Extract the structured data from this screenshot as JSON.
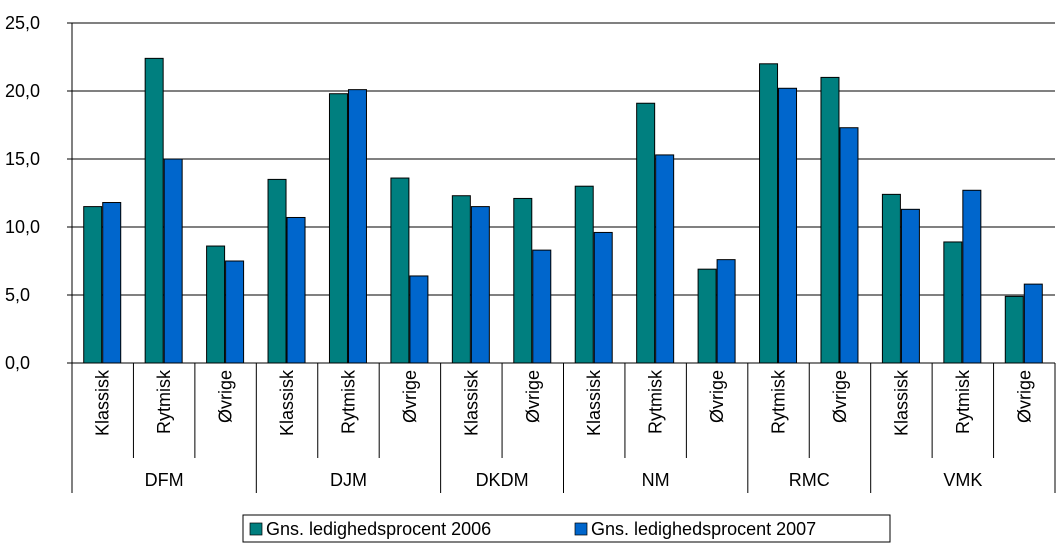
{
  "chart_data": {
    "type": "bar",
    "ylim": [
      0,
      25
    ],
    "y_ticks": [
      "0,0",
      "5,0",
      "10,0",
      "15,0",
      "20,0",
      "25,0"
    ],
    "y_tick_values": [
      0,
      5,
      10,
      15,
      20,
      25
    ],
    "grid": "horizontal",
    "legend_position": "bottom",
    "groups": [
      {
        "name": "DFM",
        "categories": [
          "Klassisk",
          "Rytmisk",
          "Øvrige"
        ]
      },
      {
        "name": "DJM",
        "categories": [
          "Klassisk",
          "Rytmisk",
          "Øvrige"
        ]
      },
      {
        "name": "DKDM",
        "categories": [
          "Klassisk",
          "Øvrige"
        ]
      },
      {
        "name": "NM",
        "categories": [
          "Klassisk",
          "Rytmisk",
          "Øvrige"
        ]
      },
      {
        "name": "RMC",
        "categories": [
          "Rytmisk",
          "Øvrige"
        ]
      },
      {
        "name": "VMK",
        "categories": [
          "Klassisk",
          "Rytmisk",
          "Øvrige"
        ]
      }
    ],
    "series": [
      {
        "name": "Gns. ledighedsprocent 2006",
        "color": "#007f7f",
        "values": [
          11.5,
          22.4,
          8.6,
          13.5,
          19.8,
          13.6,
          12.3,
          12.1,
          13.0,
          19.1,
          6.9,
          22.0,
          21.0,
          12.4,
          8.9,
          4.9
        ]
      },
      {
        "name": "Gns. ledighedsprocent 2007",
        "color": "#0066cc",
        "values": [
          11.8,
          15.0,
          7.5,
          10.7,
          20.1,
          6.4,
          11.5,
          8.3,
          9.6,
          15.3,
          7.6,
          20.2,
          17.3,
          11.3,
          12.7,
          5.8
        ]
      }
    ]
  }
}
